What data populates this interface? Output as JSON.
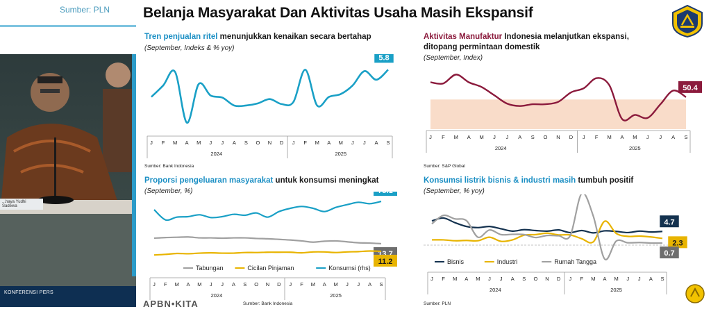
{
  "header": {
    "title": "Belanja Masyarakat Dan Aktivitas Usaha Masih Ekspansif"
  },
  "video": {
    "source_top": "Sumber: PLN",
    "nameplate": "...haya Yudhi Sadewa",
    "bottom_label": "KONFERENSI PERS"
  },
  "footer": {
    "brand": "APBN•KITA"
  },
  "colors": {
    "teal": "#1aa0c6",
    "maroon": "#8b1a3c",
    "navy": "#14324f",
    "gold": "#e8b400",
    "gray": "#a0a0a0",
    "band": "#f9dcc9"
  },
  "chart_data": [
    {
      "id": "retail",
      "type": "line",
      "title_highlight": "Tren penjualan ritel",
      "title_rest": " menunjukkan kenaikan secara bertahap",
      "subtitle": "(September, Indeks & % yoy)",
      "source": "Sumber: Bank Indonesia",
      "x": [
        "J",
        "F",
        "M",
        "A",
        "M",
        "J",
        "J",
        "A",
        "S",
        "O",
        "N",
        "D",
        "J",
        "F",
        "M",
        "A",
        "M",
        "J",
        "J",
        "A",
        "S"
      ],
      "years": [
        "2024",
        "2025"
      ],
      "series": [
        {
          "values": [
            2.0,
            3.6,
            5.5,
            -1.6,
            3.8,
            2.2,
            1.9,
            0.8,
            0.8,
            1.1,
            1.7,
            1.0,
            1.3,
            5.8,
            0.8,
            2.0,
            2.4,
            3.6,
            5.6,
            4.4,
            5.8
          ]
        }
      ],
      "ylim": [
        -2.5,
        7
      ],
      "end_label": "5.8"
    },
    {
      "id": "pmi",
      "type": "line",
      "title_highlight": "Aktivitas Manufaktur",
      "title_rest": " Indonesia melanjutkan ekspansi, ditopang permintaan domestik",
      "subtitle": "(September, Index)",
      "source": "Sumber: S&P Global",
      "x": [
        "J",
        "F",
        "M",
        "A",
        "M",
        "J",
        "J",
        "A",
        "S",
        "O",
        "N",
        "D",
        "J",
        "F",
        "M",
        "A",
        "M",
        "J",
        "J",
        "A",
        "S"
      ],
      "years": [
        "2024",
        "2025"
      ],
      "series": [
        {
          "values": [
            52.9,
            52.7,
            54.2,
            52.9,
            52.1,
            50.7,
            49.3,
            48.9,
            49.2,
            49.2,
            49.6,
            51.2,
            51.9,
            53.6,
            52.4,
            46.7,
            47.4,
            46.9,
            49.2,
            51.5,
            50.4
          ]
        }
      ],
      "ylim": [
        45,
        56
      ],
      "band": [
        45,
        50
      ],
      "end_label": "50.4"
    },
    {
      "id": "consumption",
      "type": "line",
      "title_highlight": "Proporsi pengeluaran masyarakat",
      "title_rest": " untuk konsumsi meningkat",
      "subtitle": "(September, %)",
      "source": "Sumber: Bank Indonesia",
      "x": [
        "J",
        "F",
        "M",
        "A",
        "M",
        "J",
        "J",
        "A",
        "S",
        "O",
        "N",
        "D",
        "J",
        "F",
        "M",
        "A",
        "M",
        "J",
        "J",
        "A",
        "S"
      ],
      "years": [
        "2024",
        "2025"
      ],
      "series": [
        {
          "name": "Konsumsi (rhs)",
          "values": [
            73.3,
            71.1,
            71.7,
            71.8,
            72.2,
            71.6,
            71.8,
            72.3,
            72.1,
            72.6,
            71.7,
            72.9,
            73.6,
            74.0,
            73.6,
            72.9,
            73.8,
            74.4,
            74.9,
            74.6,
            75.1
          ]
        },
        {
          "name": "Tabungan",
          "values": [
            15.5,
            15.7,
            15.8,
            15.9,
            15.6,
            15.6,
            15.5,
            15.6,
            15.6,
            15.4,
            15.3,
            15.1,
            14.9,
            14.6,
            14.2,
            14.5,
            14.6,
            14.3,
            14.0,
            13.9,
            13.7
          ]
        },
        {
          "name": "Cicilan Pinjaman",
          "values": [
            10.0,
            10.2,
            10.5,
            10.4,
            10.6,
            10.7,
            10.6,
            10.6,
            10.8,
            10.8,
            10.9,
            10.9,
            10.9,
            10.7,
            11.0,
            11.0,
            10.8,
            11.0,
            11.1,
            11.3,
            11.2
          ]
        }
      ],
      "end_labels": [
        "75.1",
        "13.7",
        "11.2"
      ]
    },
    {
      "id": "electricity",
      "type": "line",
      "title_highlight": "Konsumsi listrik bisnis & industri masih",
      "title_rest": " tumbuh positif",
      "subtitle": "(September, % yoy)",
      "source": "Sumber: PLN",
      "x": [
        "J",
        "F",
        "M",
        "A",
        "M",
        "J",
        "J",
        "A",
        "S",
        "O",
        "N",
        "D",
        "J",
        "F",
        "M",
        "A",
        "M",
        "J",
        "J",
        "A",
        "S"
      ],
      "years": [
        "2024",
        "2025"
      ],
      "series": [
        {
          "name": "Bisnis",
          "values": [
            8.3,
            9.3,
            7.7,
            6.4,
            6.0,
            6.4,
            5.6,
            4.8,
            5.3,
            5.0,
            4.8,
            5.2,
            4.3,
            5.0,
            4.2,
            4.9,
            4.7,
            4.3,
            4.8,
            4.5,
            4.7
          ]
        },
        {
          "name": "Industri",
          "values": [
            1.8,
            1.8,
            1.5,
            1.6,
            1.5,
            2.7,
            1.3,
            1.8,
            3.4,
            3.6,
            4.1,
            3.5,
            3.5,
            2.2,
            1.1,
            8.2,
            4.0,
            3.0,
            3.1,
            2.8,
            2.3
          ]
        },
        {
          "name": "Rumah Tangga",
          "values": [
            7.3,
            10.2,
            9.0,
            8.4,
            2.7,
            5.2,
            3.6,
            3.7,
            3.6,
            2.6,
            3.3,
            3.2,
            3.2,
            17.7,
            10.0,
            -4.8,
            1.4,
            0.8,
            0.9,
            0.7,
            0.7
          ]
        }
      ],
      "end_labels": [
        "4.7",
        "2.3",
        "0.7"
      ]
    }
  ]
}
